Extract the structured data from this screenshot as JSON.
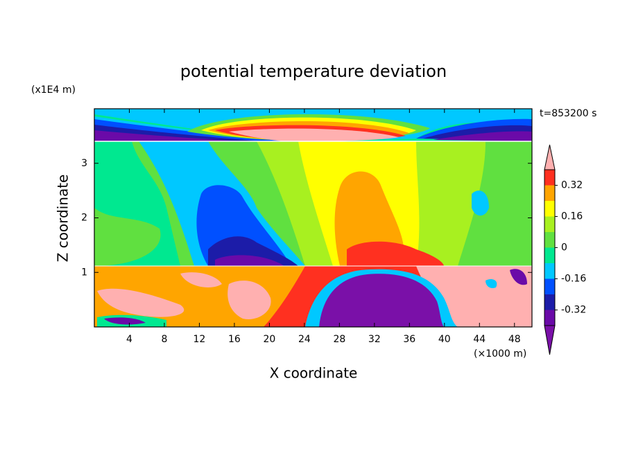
{
  "chart_data": {
    "type": "contour",
    "title": "potential temperature deviation",
    "xlabel": "X coordinate",
    "ylabel": "Z coordinate",
    "x_unit": "(×1000 m)",
    "y_unit": "(x1E4 m)",
    "annotation": "t=853200 s",
    "xlim": [
      0,
      50
    ],
    "xticks": [
      4,
      8,
      12,
      16,
      20,
      24,
      28,
      32,
      36,
      40,
      44,
      48
    ],
    "ylim": [
      0,
      4
    ],
    "yticks": [
      1,
      2,
      3
    ],
    "colorbar": {
      "levels": [
        -0.4,
        -0.32,
        -0.24,
        -0.16,
        -0.08,
        0,
        0.08,
        0.16,
        0.24,
        0.32,
        0.4
      ],
      "colors": [
        "#7a10a8",
        "#6a0aa8",
        "#1c1ca8",
        "#0050ff",
        "#00c8ff",
        "#00e890",
        "#60e040",
        "#a8f020",
        "#ffff00",
        "#ffa500",
        "#ff3020",
        "#ffb0b0"
      ],
      "ticks": [
        -0.32,
        -0.16,
        0,
        0.16,
        0.32
      ]
    }
  }
}
